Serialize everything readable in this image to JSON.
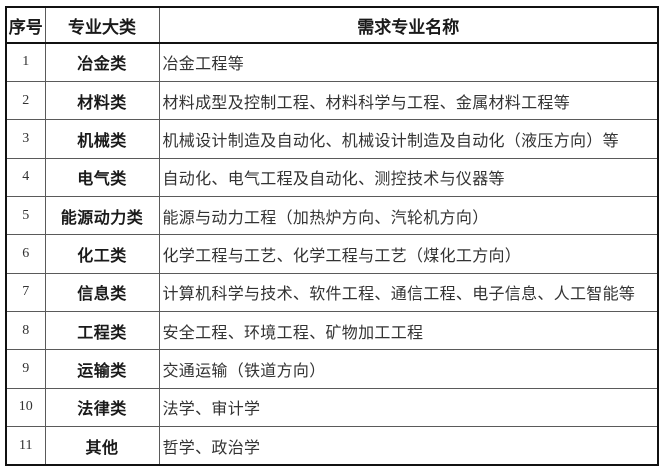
{
  "colors": {
    "border-strong": "#111111",
    "border-inner": "#5a5a5a",
    "text-main": "#333333",
    "text-bold": "#1a1a1a",
    "bg": "#ffffff"
  },
  "table": {
    "columns": [
      {
        "key": "index",
        "label": "序号"
      },
      {
        "key": "category",
        "label": "专业大类"
      },
      {
        "key": "majors",
        "label": "需求专业名称"
      }
    ],
    "rows": [
      {
        "index": "1",
        "category": "冶金类",
        "majors": "冶金工程等"
      },
      {
        "index": "2",
        "category": "材料类",
        "majors": "材料成型及控制工程、材料科学与工程、金属材料工程等"
      },
      {
        "index": "3",
        "category": "机械类",
        "majors": "机械设计制造及自动化、机械设计制造及自动化（液压方向）等"
      },
      {
        "index": "4",
        "category": "电气类",
        "majors": "自动化、电气工程及自动化、测控技术与仪器等"
      },
      {
        "index": "5",
        "category": "能源动力类",
        "majors": "能源与动力工程（加热炉方向、汽轮机方向）"
      },
      {
        "index": "6",
        "category": "化工类",
        "majors": "化学工程与工艺、化学工程与工艺（煤化工方向）"
      },
      {
        "index": "7",
        "category": "信息类",
        "majors": "计算机科学与技术、软件工程、通信工程、电子信息、人工智能等"
      },
      {
        "index": "8",
        "category": "工程类",
        "majors": "安全工程、环境工程、矿物加工工程"
      },
      {
        "index": "9",
        "category": "运输类",
        "majors": "交通运输（铁道方向）"
      },
      {
        "index": "10",
        "category": "法律类",
        "majors": "法学、审计学"
      },
      {
        "index": "11",
        "category": "其他",
        "majors": "哲学、政治学"
      }
    ]
  }
}
